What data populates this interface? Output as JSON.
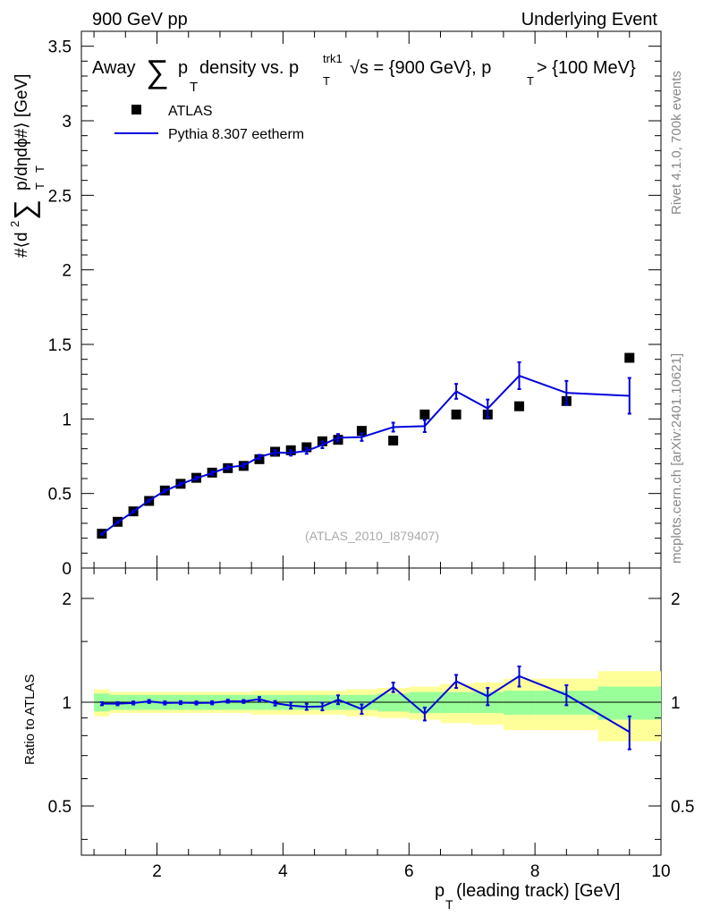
{
  "header": {
    "left": "900 GeV pp",
    "right": "Underlying Event"
  },
  "side_labels": {
    "rivet": "Rivet 4.1.0,  700k events",
    "mcplots": "mcplots.cern.ch [arXiv:2401.10621]"
  },
  "main_plot": {
    "title_prefix": "Away",
    "title_sum_symbol": "∑",
    "title_p": "p",
    "title_t_sub": "T",
    "title_middle": " density vs. p",
    "title_trk1_sup": "trk1",
    "title_trk1_sub": "T",
    "title_sqrt": "√s = {900 GeV}, p",
    "title_pt_sub": "T",
    "title_suffix": " > {100 MeV}",
    "ylabel_prefix": "#⟨d",
    "ylabel_sup2": "2",
    "ylabel_sum": "∑",
    "ylabel_p": "p",
    "ylabel_sub_t1": "T",
    "ylabel_mid": " /dηdϕ#⟩ [GeV]",
    "ylabel_sub_t2": "T",
    "watermark": "(ATLAS_2010_I879407)",
    "legend": {
      "data_label": "ATLAS",
      "mc_label": "Pythia 8.307 eetherm"
    },
    "yticks": [
      "0",
      "0.5",
      "1",
      "1.5",
      "2",
      "2.5",
      "3",
      "3.5"
    ]
  },
  "ratio_plot": {
    "ylabel": "Ratio to ATLAS",
    "yticks": [
      "0.5",
      "1",
      "2"
    ]
  },
  "x_axis": {
    "label_p": "p",
    "label_sub": "T",
    "label_rest": " (leading track) [GeV]",
    "ticks": [
      "2",
      "4",
      "6",
      "8",
      "10"
    ]
  },
  "colors": {
    "mc_line": "#0000dd",
    "band_outer": "#ffff99",
    "band_inner": "#99ff99",
    "data_marker": "#000000",
    "side_text": "#888888"
  },
  "chart_data": {
    "type": "scatter",
    "title": "Away ∑ p_T density vs. p_T^trk1, √s = {900 GeV}, p_T > {100 MeV}",
    "xlabel": "p_T (leading track) [GeV]",
    "ylabel": "#⟨d² ∑ p_T /dηdϕ#⟩ [GeV]",
    "xlim": [
      0.8,
      10.0
    ],
    "ylim": [
      0,
      3.6
    ],
    "ratio_ylim": [
      0.36,
      2.45
    ],
    "ratio_ylabel": "Ratio to ATLAS",
    "bin_edges": [
      1.0,
      1.25,
      1.5,
      1.75,
      2.0,
      2.25,
      2.5,
      2.75,
      3.0,
      3.25,
      3.5,
      3.75,
      4.0,
      4.25,
      4.5,
      4.75,
      5.0,
      5.5,
      6.0,
      6.5,
      7.0,
      7.5,
      8.0,
      9.0,
      10.0
    ],
    "series": [
      {
        "name": "ATLAS",
        "kind": "data",
        "x": [
          1.125,
          1.375,
          1.625,
          1.875,
          2.125,
          2.375,
          2.625,
          2.875,
          3.125,
          3.375,
          3.625,
          3.875,
          4.125,
          4.375,
          4.625,
          4.875,
          5.25,
          5.75,
          6.25,
          6.75,
          7.25,
          7.75,
          8.5,
          9.5
        ],
        "y": [
          0.23,
          0.31,
          0.38,
          0.45,
          0.52,
          0.565,
          0.605,
          0.64,
          0.67,
          0.685,
          0.73,
          0.78,
          0.79,
          0.81,
          0.85,
          0.86,
          0.92,
          0.855,
          1.03,
          1.03,
          1.03,
          1.085,
          1.12,
          1.41
        ]
      },
      {
        "name": "Pythia 8.307 eetherm",
        "kind": "mc",
        "x": [
          1.125,
          1.375,
          1.625,
          1.875,
          2.125,
          2.375,
          2.625,
          2.875,
          3.125,
          3.375,
          3.625,
          3.875,
          4.125,
          4.375,
          4.625,
          4.875,
          5.25,
          5.75,
          6.25,
          6.75,
          7.25,
          7.75,
          8.5,
          9.5
        ],
        "y": [
          0.228,
          0.307,
          0.378,
          0.453,
          0.518,
          0.563,
          0.602,
          0.637,
          0.675,
          0.688,
          0.745,
          0.775,
          0.772,
          0.786,
          0.826,
          0.874,
          0.878,
          0.945,
          0.952,
          1.185,
          1.07,
          1.29,
          1.175,
          1.155
        ],
        "yerr": [
          0.004,
          0.005,
          0.006,
          0.007,
          0.008,
          0.009,
          0.01,
          0.011,
          0.012,
          0.013,
          0.014,
          0.016,
          0.018,
          0.02,
          0.022,
          0.025,
          0.025,
          0.03,
          0.04,
          0.05,
          0.06,
          0.09,
          0.08,
          0.12
        ],
        "ratio": [
          0.99,
          0.99,
          0.995,
          1.005,
          0.995,
          0.997,
          0.995,
          0.996,
          1.007,
          1.005,
          1.02,
          0.993,
          0.978,
          0.97,
          0.972,
          1.017,
          0.955,
          1.105,
          0.925,
          1.15,
          1.04,
          1.19,
          1.05,
          0.82
        ],
        "ratio_err": [
          0.01,
          0.01,
          0.01,
          0.01,
          0.01,
          0.01,
          0.01,
          0.01,
          0.01,
          0.01,
          0.015,
          0.015,
          0.02,
          0.02,
          0.025,
          0.03,
          0.03,
          0.035,
          0.04,
          0.05,
          0.06,
          0.08,
          0.07,
          0.09
        ]
      }
    ],
    "uncertainty_bands": {
      "inner": [
        0.06,
        0.05,
        0.05,
        0.05,
        0.05,
        0.05,
        0.05,
        0.05,
        0.05,
        0.05,
        0.05,
        0.05,
        0.05,
        0.05,
        0.05,
        0.05,
        0.05,
        0.06,
        0.07,
        0.07,
        0.07,
        0.08,
        0.08,
        0.11
      ],
      "outer": [
        0.09,
        0.07,
        0.07,
        0.07,
        0.07,
        0.07,
        0.07,
        0.07,
        0.07,
        0.07,
        0.08,
        0.08,
        0.08,
        0.08,
        0.08,
        0.08,
        0.09,
        0.1,
        0.11,
        0.13,
        0.14,
        0.17,
        0.17,
        0.23
      ]
    }
  }
}
